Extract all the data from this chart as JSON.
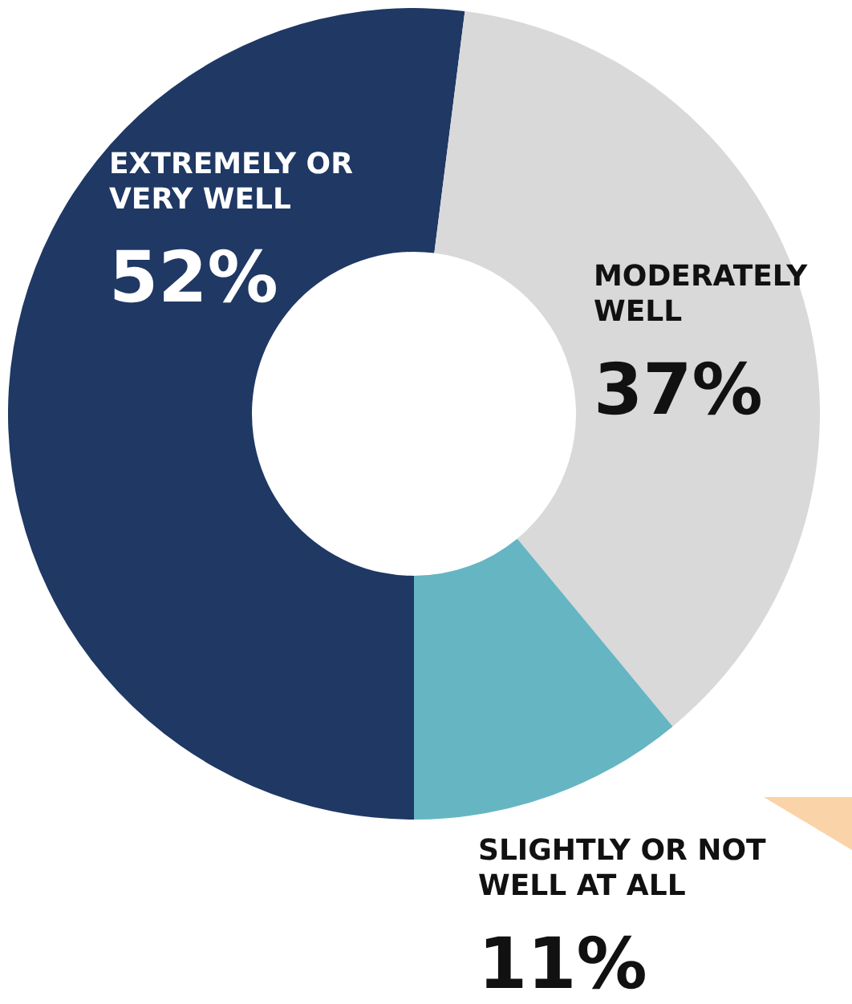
{
  "chart_data": {
    "type": "donut",
    "categories": [
      "EXTREMELY OR VERY WELL",
      "MODERATELY WELL",
      "SLIGHTLY OR NOT WELL AT ALL"
    ],
    "values": [
      52,
      37,
      11
    ],
    "colors": [
      "#1f3864",
      "#d9d9d9",
      "#66b5c3"
    ],
    "value_labels": [
      "52%",
      "37%",
      "11%"
    ]
  }
}
